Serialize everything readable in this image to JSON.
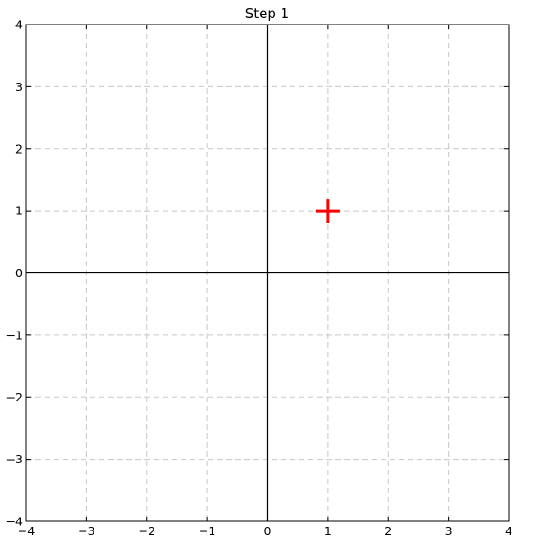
{
  "chart_data": {
    "type": "scatter",
    "title": "Step 1",
    "xlabel": "",
    "ylabel": "",
    "xlim": [
      -4,
      4
    ],
    "ylim": [
      -4,
      4
    ],
    "x_ticks": [
      -4,
      -3,
      -2,
      -1,
      0,
      1,
      2,
      3,
      4
    ],
    "y_ticks": [
      -4,
      -3,
      -2,
      -1,
      0,
      1,
      2,
      3,
      4
    ],
    "x_tick_labels": [
      "−4",
      "−3",
      "−2",
      "−1",
      "0",
      "1",
      "2",
      "3",
      "4"
    ],
    "y_tick_labels": [
      "−4",
      "−3",
      "−2",
      "−1",
      "0",
      "1",
      "2",
      "3",
      "4"
    ],
    "grid": true,
    "grid_style": "dashed",
    "axis_lines_through_origin": true,
    "series": [
      {
        "marker": "plus",
        "color": "#ff0000",
        "points": [
          {
            "x": 1,
            "y": 1
          }
        ]
      }
    ]
  },
  "colors": {
    "grid": "#c8c8c8",
    "axes": "#000000",
    "marker": "#ff0000",
    "background": "#ffffff"
  }
}
